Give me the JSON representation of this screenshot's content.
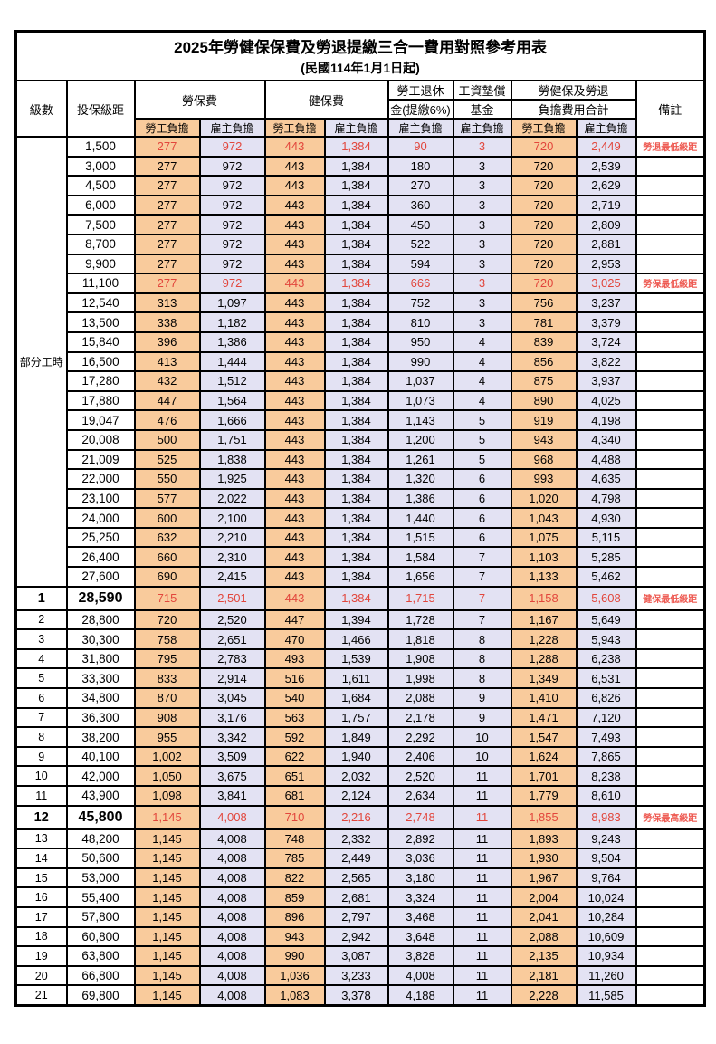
{
  "title": "2025年勞健保保費及勞退提繳三合一費用對照參考用表",
  "subtitle": "(民國114年1月1日起)",
  "colors": {
    "employee_bg": "#F9CB9C",
    "employer_bg": "#E3E2F3",
    "highlight_red": "#E2463C",
    "remark_red": "#EE5A52",
    "border": "#000000"
  },
  "header": {
    "level": "級數",
    "bracket": "投保級距",
    "labor_insurance": "勞保費",
    "health_insurance": "健保費",
    "pension_line1": "勞工退休",
    "pension_line2": "金(提繳6%)",
    "wage_arrears_line1": "工資墊償",
    "wage_arrears_line2": "基金",
    "total_line1": "勞健保及勞退",
    "total_line2": "負擔費用合計",
    "remark": "備註",
    "employee_share": "勞工負擔",
    "employer_share": "雇主負擔"
  },
  "part_time": {
    "label": "部分工時",
    "span": 23
  },
  "rows": [
    {
      "level": "",
      "bracket": "1,500",
      "labor_emp": "277",
      "labor_er": "972",
      "health_emp": "443",
      "health_er": "1,384",
      "pension": "90",
      "arrears": "3",
      "total_emp": "720",
      "total_er": "2,449",
      "remark": "勞退最低級距",
      "style": "hl"
    },
    {
      "level": "",
      "bracket": "3,000",
      "labor_emp": "277",
      "labor_er": "972",
      "health_emp": "443",
      "health_er": "1,384",
      "pension": "180",
      "arrears": "3",
      "total_emp": "720",
      "total_er": "2,539",
      "remark": "",
      "style": ""
    },
    {
      "level": "",
      "bracket": "4,500",
      "labor_emp": "277",
      "labor_er": "972",
      "health_emp": "443",
      "health_er": "1,384",
      "pension": "270",
      "arrears": "3",
      "total_emp": "720",
      "total_er": "2,629",
      "remark": "",
      "style": ""
    },
    {
      "level": "",
      "bracket": "6,000",
      "labor_emp": "277",
      "labor_er": "972",
      "health_emp": "443",
      "health_er": "1,384",
      "pension": "360",
      "arrears": "3",
      "total_emp": "720",
      "total_er": "2,719",
      "remark": "",
      "style": ""
    },
    {
      "level": "",
      "bracket": "7,500",
      "labor_emp": "277",
      "labor_er": "972",
      "health_emp": "443",
      "health_er": "1,384",
      "pension": "450",
      "arrears": "3",
      "total_emp": "720",
      "total_er": "2,809",
      "remark": "",
      "style": ""
    },
    {
      "level": "",
      "bracket": "8,700",
      "labor_emp": "277",
      "labor_er": "972",
      "health_emp": "443",
      "health_er": "1,384",
      "pension": "522",
      "arrears": "3",
      "total_emp": "720",
      "total_er": "2,881",
      "remark": "",
      "style": ""
    },
    {
      "level": "",
      "bracket": "9,900",
      "labor_emp": "277",
      "labor_er": "972",
      "health_emp": "443",
      "health_er": "1,384",
      "pension": "594",
      "arrears": "3",
      "total_emp": "720",
      "total_er": "2,953",
      "remark": "",
      "style": ""
    },
    {
      "level": "",
      "bracket": "11,100",
      "labor_emp": "277",
      "labor_er": "972",
      "health_emp": "443",
      "health_er": "1,384",
      "pension": "666",
      "arrears": "3",
      "total_emp": "720",
      "total_er": "3,025",
      "remark": "勞保最低級距",
      "style": "hl"
    },
    {
      "level": "",
      "bracket": "12,540",
      "labor_emp": "313",
      "labor_er": "1,097",
      "health_emp": "443",
      "health_er": "1,384",
      "pension": "752",
      "arrears": "3",
      "total_emp": "756",
      "total_er": "3,237",
      "remark": "",
      "style": ""
    },
    {
      "level": "",
      "bracket": "13,500",
      "labor_emp": "338",
      "labor_er": "1,182",
      "health_emp": "443",
      "health_er": "1,384",
      "pension": "810",
      "arrears": "3",
      "total_emp": "781",
      "total_er": "3,379",
      "remark": "",
      "style": ""
    },
    {
      "level": "",
      "bracket": "15,840",
      "labor_emp": "396",
      "labor_er": "1,386",
      "health_emp": "443",
      "health_er": "1,384",
      "pension": "950",
      "arrears": "4",
      "total_emp": "839",
      "total_er": "3,724",
      "remark": "",
      "style": ""
    },
    {
      "level": "",
      "bracket": "16,500",
      "labor_emp": "413",
      "labor_er": "1,444",
      "health_emp": "443",
      "health_er": "1,384",
      "pension": "990",
      "arrears": "4",
      "total_emp": "856",
      "total_er": "3,822",
      "remark": "",
      "style": ""
    },
    {
      "level": "",
      "bracket": "17,280",
      "labor_emp": "432",
      "labor_er": "1,512",
      "health_emp": "443",
      "health_er": "1,384",
      "pension": "1,037",
      "arrears": "4",
      "total_emp": "875",
      "total_er": "3,937",
      "remark": "",
      "style": ""
    },
    {
      "level": "",
      "bracket": "17,880",
      "labor_emp": "447",
      "labor_er": "1,564",
      "health_emp": "443",
      "health_er": "1,384",
      "pension": "1,073",
      "arrears": "4",
      "total_emp": "890",
      "total_er": "4,025",
      "remark": "",
      "style": ""
    },
    {
      "level": "",
      "bracket": "19,047",
      "labor_emp": "476",
      "labor_er": "1,666",
      "health_emp": "443",
      "health_er": "1,384",
      "pension": "1,143",
      "arrears": "5",
      "total_emp": "919",
      "total_er": "4,198",
      "remark": "",
      "style": ""
    },
    {
      "level": "",
      "bracket": "20,008",
      "labor_emp": "500",
      "labor_er": "1,751",
      "health_emp": "443",
      "health_er": "1,384",
      "pension": "1,200",
      "arrears": "5",
      "total_emp": "943",
      "total_er": "4,340",
      "remark": "",
      "style": ""
    },
    {
      "level": "",
      "bracket": "21,009",
      "labor_emp": "525",
      "labor_er": "1,838",
      "health_emp": "443",
      "health_er": "1,384",
      "pension": "1,261",
      "arrears": "5",
      "total_emp": "968",
      "total_er": "4,488",
      "remark": "",
      "style": ""
    },
    {
      "level": "",
      "bracket": "22,000",
      "labor_emp": "550",
      "labor_er": "1,925",
      "health_emp": "443",
      "health_er": "1,384",
      "pension": "1,320",
      "arrears": "6",
      "total_emp": "993",
      "total_er": "4,635",
      "remark": "",
      "style": ""
    },
    {
      "level": "",
      "bracket": "23,100",
      "labor_emp": "577",
      "labor_er": "2,022",
      "health_emp": "443",
      "health_er": "1,384",
      "pension": "1,386",
      "arrears": "6",
      "total_emp": "1,020",
      "total_er": "4,798",
      "remark": "",
      "style": ""
    },
    {
      "level": "",
      "bracket": "24,000",
      "labor_emp": "600",
      "labor_er": "2,100",
      "health_emp": "443",
      "health_er": "1,384",
      "pension": "1,440",
      "arrears": "6",
      "total_emp": "1,043",
      "total_er": "4,930",
      "remark": "",
      "style": ""
    },
    {
      "level": "",
      "bracket": "25,250",
      "labor_emp": "632",
      "labor_er": "2,210",
      "health_emp": "443",
      "health_er": "1,384",
      "pension": "1,515",
      "arrears": "6",
      "total_emp": "1,075",
      "total_er": "5,115",
      "remark": "",
      "style": ""
    },
    {
      "level": "",
      "bracket": "26,400",
      "labor_emp": "660",
      "labor_er": "2,310",
      "health_emp": "443",
      "health_er": "1,384",
      "pension": "1,584",
      "arrears": "7",
      "total_emp": "1,103",
      "total_er": "5,285",
      "remark": "",
      "style": ""
    },
    {
      "level": "",
      "bracket": "27,600",
      "labor_emp": "690",
      "labor_er": "2,415",
      "health_emp": "443",
      "health_er": "1,384",
      "pension": "1,656",
      "arrears": "7",
      "total_emp": "1,133",
      "total_er": "5,462",
      "remark": "",
      "style": ""
    },
    {
      "level": "1",
      "bracket": "28,590",
      "labor_emp": "715",
      "labor_er": "2,501",
      "health_emp": "443",
      "health_er": "1,384",
      "pension": "1,715",
      "arrears": "7",
      "total_emp": "1,158",
      "total_er": "5,608",
      "remark": "健保最低級距",
      "style": "em"
    },
    {
      "level": "2",
      "bracket": "28,800",
      "labor_emp": "720",
      "labor_er": "2,520",
      "health_emp": "447",
      "health_er": "1,394",
      "pension": "1,728",
      "arrears": "7",
      "total_emp": "1,167",
      "total_er": "5,649",
      "remark": "",
      "style": ""
    },
    {
      "level": "3",
      "bracket": "30,300",
      "labor_emp": "758",
      "labor_er": "2,651",
      "health_emp": "470",
      "health_er": "1,466",
      "pension": "1,818",
      "arrears": "8",
      "total_emp": "1,228",
      "total_er": "5,943",
      "remark": "",
      "style": ""
    },
    {
      "level": "4",
      "bracket": "31,800",
      "labor_emp": "795",
      "labor_er": "2,783",
      "health_emp": "493",
      "health_er": "1,539",
      "pension": "1,908",
      "arrears": "8",
      "total_emp": "1,288",
      "total_er": "6,238",
      "remark": "",
      "style": ""
    },
    {
      "level": "5",
      "bracket": "33,300",
      "labor_emp": "833",
      "labor_er": "2,914",
      "health_emp": "516",
      "health_er": "1,611",
      "pension": "1,998",
      "arrears": "8",
      "total_emp": "1,349",
      "total_er": "6,531",
      "remark": "",
      "style": ""
    },
    {
      "level": "6",
      "bracket": "34,800",
      "labor_emp": "870",
      "labor_er": "3,045",
      "health_emp": "540",
      "health_er": "1,684",
      "pension": "2,088",
      "arrears": "9",
      "total_emp": "1,410",
      "total_er": "6,826",
      "remark": "",
      "style": ""
    },
    {
      "level": "7",
      "bracket": "36,300",
      "labor_emp": "908",
      "labor_er": "3,176",
      "health_emp": "563",
      "health_er": "1,757",
      "pension": "2,178",
      "arrears": "9",
      "total_emp": "1,471",
      "total_er": "7,120",
      "remark": "",
      "style": ""
    },
    {
      "level": "8",
      "bracket": "38,200",
      "labor_emp": "955",
      "labor_er": "3,342",
      "health_emp": "592",
      "health_er": "1,849",
      "pension": "2,292",
      "arrears": "10",
      "total_emp": "1,547",
      "total_er": "7,493",
      "remark": "",
      "style": ""
    },
    {
      "level": "9",
      "bracket": "40,100",
      "labor_emp": "1,002",
      "labor_er": "3,509",
      "health_emp": "622",
      "health_er": "1,940",
      "pension": "2,406",
      "arrears": "10",
      "total_emp": "1,624",
      "total_er": "7,865",
      "remark": "",
      "style": ""
    },
    {
      "level": "10",
      "bracket": "42,000",
      "labor_emp": "1,050",
      "labor_er": "3,675",
      "health_emp": "651",
      "health_er": "2,032",
      "pension": "2,520",
      "arrears": "11",
      "total_emp": "1,701",
      "total_er": "8,238",
      "remark": "",
      "style": ""
    },
    {
      "level": "11",
      "bracket": "43,900",
      "labor_emp": "1,098",
      "labor_er": "3,841",
      "health_emp": "681",
      "health_er": "2,124",
      "pension": "2,634",
      "arrears": "11",
      "total_emp": "1,779",
      "total_er": "8,610",
      "remark": "",
      "style": ""
    },
    {
      "level": "12",
      "bracket": "45,800",
      "labor_emp": "1,145",
      "labor_er": "4,008",
      "health_emp": "710",
      "health_er": "2,216",
      "pension": "2,748",
      "arrears": "11",
      "total_emp": "1,855",
      "total_er": "8,983",
      "remark": "勞保最高級距",
      "style": "em"
    },
    {
      "level": "13",
      "bracket": "48,200",
      "labor_emp": "1,145",
      "labor_er": "4,008",
      "health_emp": "748",
      "health_er": "2,332",
      "pension": "2,892",
      "arrears": "11",
      "total_emp": "1,893",
      "total_er": "9,243",
      "remark": "",
      "style": ""
    },
    {
      "level": "14",
      "bracket": "50,600",
      "labor_emp": "1,145",
      "labor_er": "4,008",
      "health_emp": "785",
      "health_er": "2,449",
      "pension": "3,036",
      "arrears": "11",
      "total_emp": "1,930",
      "total_er": "9,504",
      "remark": "",
      "style": ""
    },
    {
      "level": "15",
      "bracket": "53,000",
      "labor_emp": "1,145",
      "labor_er": "4,008",
      "health_emp": "822",
      "health_er": "2,565",
      "pension": "3,180",
      "arrears": "11",
      "total_emp": "1,967",
      "total_er": "9,764",
      "remark": "",
      "style": ""
    },
    {
      "level": "16",
      "bracket": "55,400",
      "labor_emp": "1,145",
      "labor_er": "4,008",
      "health_emp": "859",
      "health_er": "2,681",
      "pension": "3,324",
      "arrears": "11",
      "total_emp": "2,004",
      "total_er": "10,024",
      "remark": "",
      "style": ""
    },
    {
      "level": "17",
      "bracket": "57,800",
      "labor_emp": "1,145",
      "labor_er": "4,008",
      "health_emp": "896",
      "health_er": "2,797",
      "pension": "3,468",
      "arrears": "11",
      "total_emp": "2,041",
      "total_er": "10,284",
      "remark": "",
      "style": ""
    },
    {
      "level": "18",
      "bracket": "60,800",
      "labor_emp": "1,145",
      "labor_er": "4,008",
      "health_emp": "943",
      "health_er": "2,942",
      "pension": "3,648",
      "arrears": "11",
      "total_emp": "2,088",
      "total_er": "10,609",
      "remark": "",
      "style": ""
    },
    {
      "level": "19",
      "bracket": "63,800",
      "labor_emp": "1,145",
      "labor_er": "4,008",
      "health_emp": "990",
      "health_er": "3,087",
      "pension": "3,828",
      "arrears": "11",
      "total_emp": "2,135",
      "total_er": "10,934",
      "remark": "",
      "style": ""
    },
    {
      "level": "20",
      "bracket": "66,800",
      "labor_emp": "1,145",
      "labor_er": "4,008",
      "health_emp": "1,036",
      "health_er": "3,233",
      "pension": "4,008",
      "arrears": "11",
      "total_emp": "2,181",
      "total_er": "11,260",
      "remark": "",
      "style": ""
    },
    {
      "level": "21",
      "bracket": "69,800",
      "labor_emp": "1,145",
      "labor_er": "4,008",
      "health_emp": "1,083",
      "health_er": "3,378",
      "pension": "4,188",
      "arrears": "11",
      "total_emp": "2,228",
      "total_er": "11,585",
      "remark": "",
      "style": ""
    }
  ]
}
